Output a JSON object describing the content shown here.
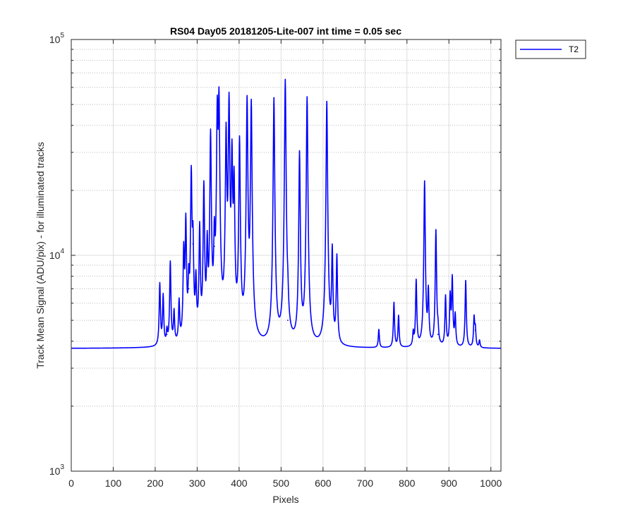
{
  "chart_data": {
    "type": "line",
    "title": "RS04 Day05 20181205-Lite-007 int time = 0.05 sec",
    "xlabel": "Pixels",
    "ylabel": "Track Mean Signal (ADU/pix) - for illuminated tracks",
    "xlim": [
      0,
      1024
    ],
    "ylim": [
      1000,
      100000
    ],
    "yscale": "log",
    "grid": true,
    "x_ticks": [
      0,
      100,
      200,
      300,
      400,
      500,
      600,
      700,
      800,
      900,
      1000
    ],
    "y_ticks": [
      {
        "value": 1000,
        "base": "10",
        "exp": "3"
      },
      {
        "value": 10000,
        "base": "10",
        "exp": "4"
      },
      {
        "value": 100000,
        "base": "10",
        "exp": "5"
      }
    ],
    "legend_position": "outside-top-right",
    "baseline": 3700,
    "peak_width": 2.2,
    "series": [
      {
        "name": "T2",
        "color": "#0000ff",
        "peaks": [
          [
            211,
            7300
          ],
          [
            219,
            6400
          ],
          [
            228,
            4300
          ],
          [
            236,
            9200
          ],
          [
            245,
            5300
          ],
          [
            257,
            5900
          ],
          [
            268,
            10300
          ],
          [
            273,
            14500
          ],
          [
            280,
            7000
          ],
          [
            286,
            24500
          ],
          [
            290,
            11300
          ],
          [
            297,
            7200
          ],
          [
            306,
            13300
          ],
          [
            316,
            21000
          ],
          [
            324,
            10700
          ],
          [
            332,
            37000
          ],
          [
            341,
            11000
          ],
          [
            348,
            48000
          ],
          [
            352,
            54000
          ],
          [
            369,
            38000
          ],
          [
            376,
            53500
          ],
          [
            383,
            30000
          ],
          [
            388,
            22000
          ],
          [
            401,
            34500
          ],
          [
            419,
            53500
          ],
          [
            429,
            51500
          ],
          [
            483,
            53500
          ],
          [
            510,
            65000
          ],
          [
            516,
            5000
          ],
          [
            544,
            30000
          ],
          [
            562,
            54000
          ],
          [
            609,
            51500
          ],
          [
            622,
            10500
          ],
          [
            633,
            9800
          ],
          [
            733,
            4500
          ],
          [
            769,
            6000
          ],
          [
            780,
            5200
          ],
          [
            815,
            4300
          ],
          [
            822,
            7600
          ],
          [
            842,
            22000
          ],
          [
            851,
            6700
          ],
          [
            869,
            13000
          ],
          [
            874,
            4300
          ],
          [
            892,
            6400
          ],
          [
            903,
            6400
          ],
          [
            908,
            7800
          ],
          [
            915,
            5200
          ],
          [
            940,
            7600
          ],
          [
            960,
            5100
          ],
          [
            963,
            4500
          ],
          [
            973,
            4000
          ]
        ]
      }
    ]
  }
}
